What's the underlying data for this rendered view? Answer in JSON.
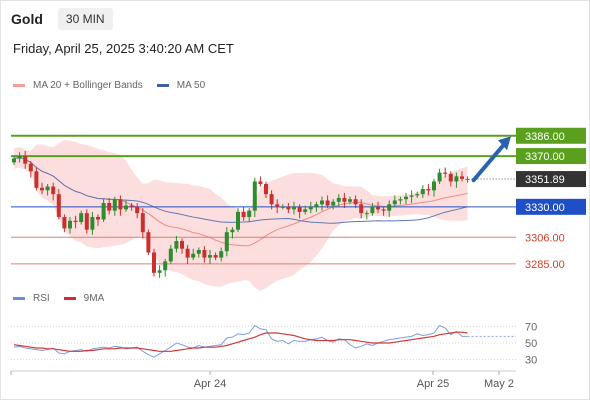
{
  "header": {
    "symbol": "Gold",
    "timeframe": "30 MIN",
    "timestamp": "Friday, April 25, 2025 3:40:20 AM CET"
  },
  "legend_price": [
    {
      "name": "MA 20 + Bollinger Bands",
      "color": "#f4a09a"
    },
    {
      "name": "MA 50",
      "color": "#3d5fa8"
    }
  ],
  "legend_rsi": [
    {
      "name": "RSI",
      "color": "#6a8fd6"
    },
    {
      "name": "9MA",
      "color": "#d22d2d"
    }
  ],
  "colors": {
    "up": "#2e8b2e",
    "down": "#c8302f",
    "band": "#fcdede",
    "resistance": "#5aa01e",
    "support": "#1f4fc7",
    "level": "#e07d72",
    "price": "#333333"
  },
  "chart_data": {
    "type": "candlestick",
    "y_range": [
      3255,
      3400
    ],
    "x_ticks": [
      "Apr 24",
      "Apr 25",
      "May 2"
    ],
    "levels": [
      {
        "label": "3386.00",
        "value": 3386.0,
        "kind": "resistance"
      },
      {
        "label": "3370.00",
        "value": 3370.0,
        "kind": "resistance"
      },
      {
        "label": "3351.89",
        "value": 3351.89,
        "kind": "price"
      },
      {
        "label": "3330.00",
        "value": 3330.0,
        "kind": "support"
      },
      {
        "label": "3306.00",
        "value": 3306.0,
        "kind": "level"
      },
      {
        "label": "3285.00",
        "value": 3285.0,
        "kind": "level"
      }
    ],
    "close": [
      3368,
      3370,
      3364,
      3358,
      3345,
      3343,
      3346,
      3340,
      3322,
      3313,
      3319,
      3318,
      3325,
      3312,
      3322,
      3320,
      3333,
      3327,
      3336,
      3328,
      3331,
      3330,
      3325,
      3310,
      3294,
      3278,
      3280,
      3287,
      3297,
      3303,
      3297,
      3290,
      3293,
      3296,
      3290,
      3292,
      3290,
      3295,
      3310,
      3312,
      3326,
      3322,
      3327,
      3350,
      3348,
      3340,
      3332,
      3330,
      3330,
      3328,
      3330,
      3326,
      3328,
      3330,
      3332,
      3335,
      3331,
      3334,
      3337,
      3334,
      3336,
      3332,
      3325,
      3325,
      3330,
      3328,
      3327,
      3332,
      3335,
      3336,
      3338,
      3339,
      3340,
      3344,
      3343,
      3350,
      3357,
      3356,
      3350,
      3354,
      3352,
      3352
    ],
    "rsi": {
      "range": [
        20,
        80
      ],
      "ticks": [
        70,
        50,
        30
      ],
      "rsi": [
        45,
        46,
        44,
        43,
        42,
        41,
        42,
        44,
        38,
        37,
        40,
        41,
        42,
        40,
        43,
        44,
        45,
        44,
        46,
        45,
        43,
        44,
        45,
        40,
        36,
        33,
        37,
        41,
        45,
        50,
        48,
        45,
        44,
        47,
        45,
        46,
        47,
        48,
        56,
        57,
        61,
        60,
        62,
        71,
        67,
        66,
        55,
        52,
        53,
        49,
        53,
        52,
        52,
        54,
        55,
        57,
        53,
        51,
        55,
        54,
        48,
        44,
        46,
        49,
        47,
        50,
        52,
        54,
        55,
        56,
        57,
        58,
        61,
        59,
        60,
        62,
        71,
        68,
        60,
        64,
        58,
        58
      ],
      "ma9": [
        48,
        47,
        46,
        45,
        44,
        44,
        43,
        43,
        42,
        41,
        40,
        40,
        40,
        41,
        41,
        42,
        43,
        43,
        43,
        44,
        44,
        44,
        44,
        43,
        42,
        41,
        40,
        40,
        40,
        41,
        42,
        43,
        44,
        44,
        45,
        45,
        45,
        46,
        47,
        49,
        51,
        53,
        55,
        57,
        60,
        62,
        62,
        62,
        61,
        60,
        59,
        57,
        55,
        54,
        53,
        53,
        53,
        53,
        54,
        54,
        54,
        53,
        52,
        51,
        50,
        50,
        50,
        50,
        51,
        52,
        53,
        54,
        55,
        56,
        57,
        58,
        60,
        61,
        62,
        63,
        63,
        62
      ]
    }
  }
}
